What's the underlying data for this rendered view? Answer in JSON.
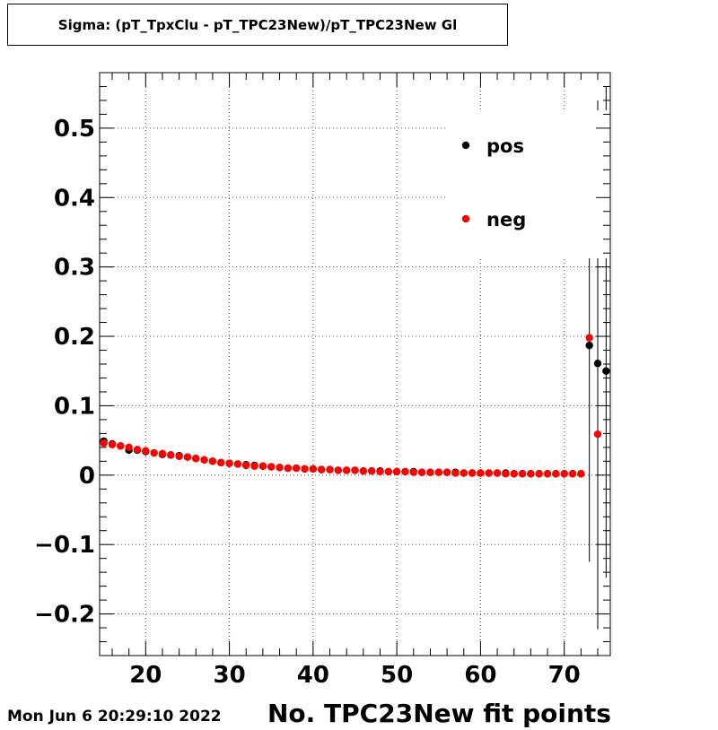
{
  "title": "Sigma: (pT_TpxClu - pT_TPC23New)/pT_TPC23New Gl",
  "timestamp": "Mon Jun  6 20:29:10 2022",
  "chart_data": {
    "type": "scatter",
    "title": "Sigma: (pT_TpxClu - pT_TPC23New)/pT_TPC23New Gl",
    "xlabel": "No. TPC23New fit points",
    "ylabel": "",
    "xlim": [
      14.5,
      75.5
    ],
    "ylim": [
      -0.26,
      0.58
    ],
    "x_ticks": [
      20,
      30,
      40,
      50,
      60,
      70
    ],
    "x_tick_labels": [
      "20",
      "30",
      "40",
      "50",
      "60",
      "70"
    ],
    "y_ticks": [
      -0.2,
      -0.1,
      0,
      0.1,
      0.2,
      0.3,
      0.4,
      0.5
    ],
    "y_tick_labels": [
      "−0.2",
      "−0.1",
      "0",
      "0.1",
      "0.2",
      "0.3",
      "0.4",
      "0.5"
    ],
    "grid": true,
    "legend_position": "top-right",
    "series": [
      {
        "name": "pos",
        "color": "#000000",
        "x": [
          15,
          16,
          17,
          18,
          19,
          20,
          21,
          22,
          23,
          24,
          25,
          26,
          27,
          28,
          29,
          30,
          31,
          32,
          33,
          34,
          35,
          36,
          37,
          38,
          39,
          40,
          41,
          42,
          43,
          44,
          45,
          46,
          47,
          48,
          49,
          50,
          51,
          52,
          53,
          54,
          55,
          56,
          57,
          58,
          59,
          60,
          61,
          62,
          63,
          64,
          65,
          66,
          67,
          68,
          69,
          70,
          71,
          72,
          73,
          74,
          75
        ],
        "y": [
          0.049,
          0.045,
          0.042,
          0.036,
          0.036,
          0.034,
          0.032,
          0.03,
          0.029,
          0.028,
          0.026,
          0.024,
          0.022,
          0.02,
          0.018,
          0.017,
          0.016,
          0.015,
          0.014,
          0.013,
          0.012,
          0.011,
          0.01,
          0.01,
          0.009,
          0.009,
          0.008,
          0.008,
          0.007,
          0.007,
          0.007,
          0.006,
          0.006,
          0.006,
          0.005,
          0.005,
          0.005,
          0.005,
          0.004,
          0.004,
          0.004,
          0.004,
          0.004,
          0.003,
          0.003,
          0.003,
          0.003,
          0.003,
          0.003,
          0.002,
          0.002,
          0.002,
          0.002,
          0.002,
          0.002,
          0.002,
          0.002,
          0.002,
          0.187,
          0.161,
          0.15
        ],
        "err_low": [
          null,
          null,
          null,
          null,
          null,
          null,
          null,
          null,
          null,
          null,
          null,
          null,
          null,
          null,
          null,
          null,
          null,
          null,
          null,
          null,
          null,
          null,
          null,
          null,
          null,
          null,
          null,
          null,
          null,
          null,
          null,
          null,
          null,
          null,
          null,
          null,
          null,
          null,
          null,
          null,
          null,
          null,
          null,
          null,
          null,
          null,
          null,
          null,
          null,
          null,
          null,
          null,
          null,
          null,
          null,
          null,
          null,
          null,
          -0.125,
          -0.222,
          -0.148
        ],
        "err_high": [
          null,
          null,
          null,
          null,
          null,
          null,
          null,
          null,
          null,
          null,
          null,
          null,
          null,
          null,
          null,
          null,
          null,
          null,
          null,
          null,
          null,
          null,
          null,
          null,
          null,
          null,
          null,
          null,
          null,
          null,
          null,
          null,
          null,
          null,
          null,
          null,
          null,
          null,
          null,
          null,
          null,
          null,
          null,
          null,
          null,
          null,
          null,
          null,
          null,
          null,
          null,
          null,
          null,
          null,
          null,
          null,
          null,
          null,
          0.32,
          0.54,
          0.56
        ]
      },
      {
        "name": "neg",
        "color": "#ff0000",
        "x": [
          15,
          16,
          17,
          18,
          19,
          20,
          21,
          22,
          23,
          24,
          25,
          26,
          27,
          28,
          29,
          30,
          31,
          32,
          33,
          34,
          35,
          36,
          37,
          38,
          39,
          40,
          41,
          42,
          43,
          44,
          45,
          46,
          47,
          48,
          49,
          50,
          51,
          52,
          53,
          54,
          55,
          56,
          57,
          58,
          59,
          60,
          61,
          62,
          63,
          64,
          65,
          66,
          67,
          68,
          69,
          70,
          71,
          72,
          73,
          74
        ],
        "y": [
          0.046,
          0.044,
          0.042,
          0.04,
          0.037,
          0.035,
          0.032,
          0.031,
          0.029,
          0.027,
          0.026,
          0.024,
          0.022,
          0.02,
          0.018,
          0.017,
          0.016,
          0.014,
          0.013,
          0.013,
          0.012,
          0.011,
          0.01,
          0.01,
          0.009,
          0.009,
          0.008,
          0.008,
          0.007,
          0.007,
          0.007,
          0.006,
          0.006,
          0.005,
          0.005,
          0.005,
          0.005,
          0.004,
          0.004,
          0.004,
          0.004,
          0.004,
          0.003,
          0.003,
          0.003,
          0.003,
          0.003,
          0.003,
          0.002,
          0.002,
          0.002,
          0.002,
          0.002,
          0.002,
          0.002,
          0.002,
          0.002,
          0.002,
          0.198,
          0.059
        ],
        "err_low": [
          null,
          null,
          null,
          null,
          null,
          null,
          null,
          null,
          null,
          null,
          null,
          null,
          null,
          null,
          null,
          null,
          null,
          null,
          null,
          null,
          null,
          null,
          null,
          null,
          null,
          null,
          null,
          null,
          null,
          null,
          null,
          null,
          null,
          null,
          null,
          null,
          null,
          null,
          null,
          null,
          null,
          null,
          null,
          null,
          null,
          null,
          null,
          null,
          null,
          null,
          null,
          null,
          null,
          null,
          null,
          null,
          null,
          null,
          null,
          null
        ],
        "err_high": [
          null,
          null,
          null,
          null,
          null,
          null,
          null,
          null,
          null,
          null,
          null,
          null,
          null,
          null,
          null,
          null,
          null,
          null,
          null,
          null,
          null,
          null,
          null,
          null,
          null,
          null,
          null,
          null,
          null,
          null,
          null,
          null,
          null,
          null,
          null,
          null,
          null,
          null,
          null,
          null,
          null,
          null,
          null,
          null,
          null,
          null,
          null,
          null,
          null,
          null,
          null,
          null,
          null,
          null,
          null,
          null,
          null,
          null,
          null,
          null
        ]
      }
    ]
  }
}
